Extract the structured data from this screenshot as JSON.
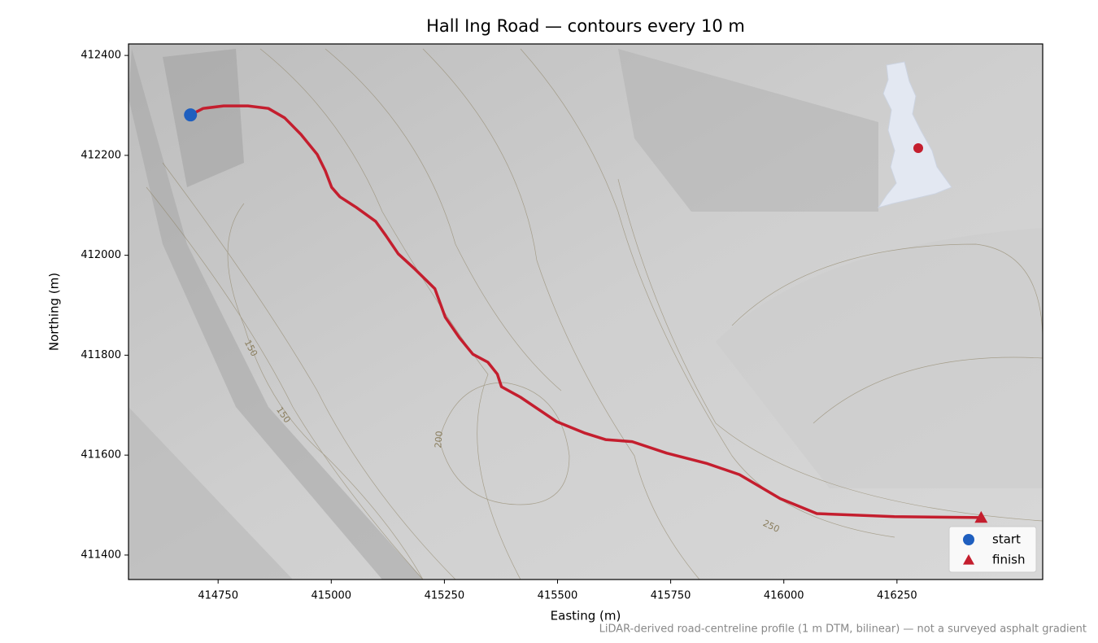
{
  "chart_data": {
    "type": "line",
    "title": "Hall Ing Road — contours every 10 m",
    "xlabel": "Easting (m)",
    "ylabel": "Northing (m)",
    "note": "LiDAR-derived road-centreline profile (1 m DTM, bilinear) — not a surveyed asphalt gradient",
    "color": "#c41e2e",
    "x": [
      414689,
      414717,
      414762,
      414816,
      414861,
      414897,
      414933,
      414969,
      414987,
      415001,
      415019,
      415055,
      415098,
      415121,
      415148,
      415184,
      415229,
      415252,
      415283,
      415313,
      415346,
      415367,
      415376,
      415418,
      415498,
      415561,
      415606,
      415665,
      415741,
      415831,
      415902,
      415992,
      416073,
      416244,
      416436
    ],
    "values": [
      412281,
      412294,
      412299,
      412299,
      412294,
      412275,
      412242,
      412202,
      412169,
      412136,
      412117,
      412096,
      412068,
      412039,
      412003,
      411973,
      411933,
      411876,
      411835,
      411802,
      411786,
      411762,
      411737,
      411716,
      411667,
      411644,
      411631,
      411627,
      411604,
      411583,
      411561,
      411513,
      411483,
      411477,
      411475
    ],
    "points": [
      {
        "name": "start",
        "x": 414689,
        "y": 412281,
        "color": "#1f5fbf",
        "marker": "circle"
      },
      {
        "name": "finish",
        "x": 416436,
        "y": 411475,
        "color": "#c41e2e",
        "marker": "triangle"
      }
    ],
    "contour_labels": [
      "150",
      "150",
      "200",
      "250"
    ],
    "xlim": [
      414552,
      416572
    ],
    "ylim": [
      411351,
      412423
    ],
    "xticks": [
      414750,
      415000,
      415250,
      415500,
      415750,
      416000,
      416250
    ],
    "yticks": [
      411400,
      411600,
      411800,
      412000,
      412200,
      412400
    ],
    "legend": "lower right"
  }
}
